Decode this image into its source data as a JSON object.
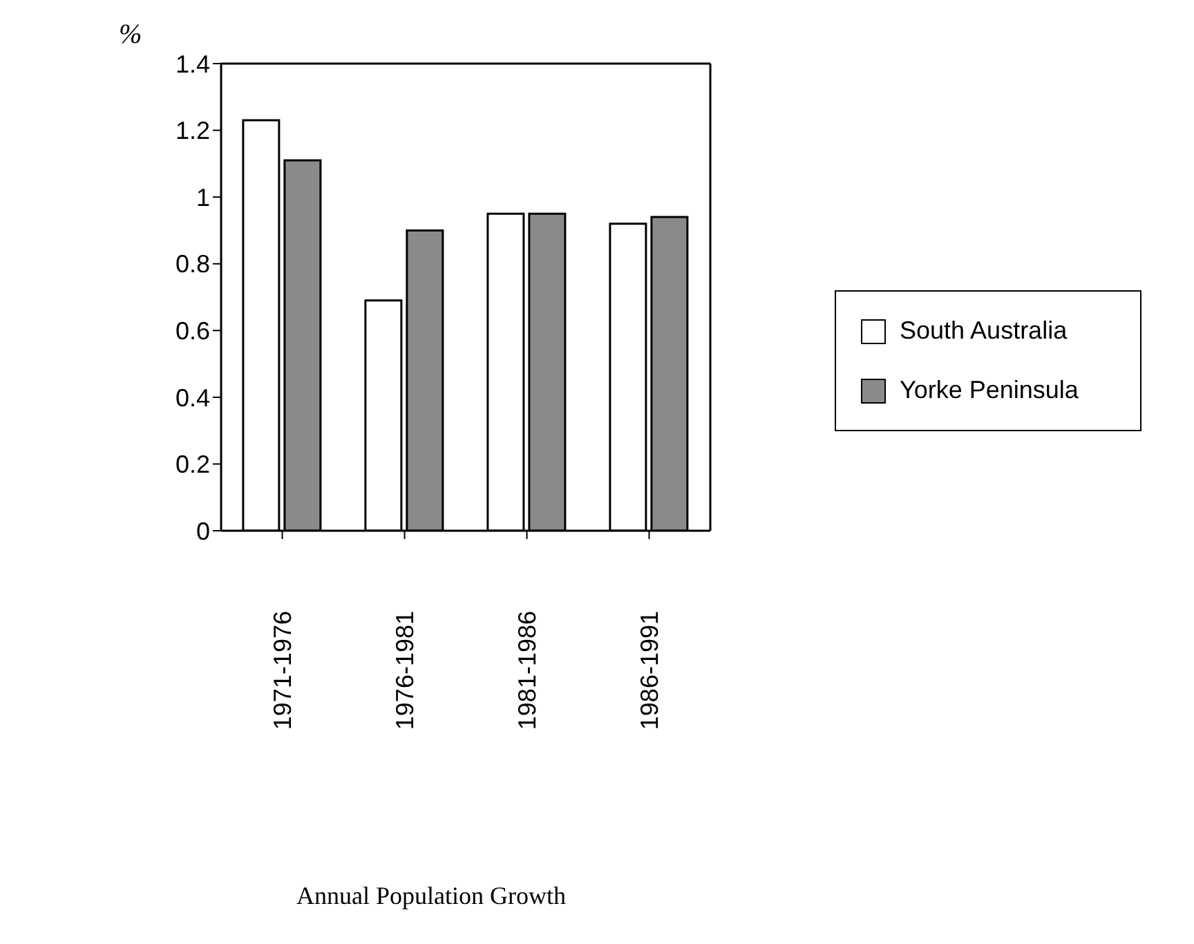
{
  "chart_data": {
    "type": "bar",
    "title": "Annual Population Growth",
    "ylabel": "%",
    "categories": [
      "1971-1976",
      "1976-1981",
      "1981-1986",
      "1986-1991"
    ],
    "series": [
      {
        "name": "South Australia",
        "color": "#ffffff",
        "values": [
          1.23,
          0.69,
          0.95,
          0.92
        ]
      },
      {
        "name": "Yorke Peninsula",
        "color": "#8a8a8a",
        "values": [
          1.11,
          0.9,
          0.95,
          0.94
        ]
      }
    ],
    "ylim": [
      0,
      1.4
    ],
    "yticks": [
      0,
      0.2,
      0.4,
      0.6,
      0.8,
      1,
      1.2,
      1.4
    ],
    "grid": false,
    "legend": "right"
  }
}
